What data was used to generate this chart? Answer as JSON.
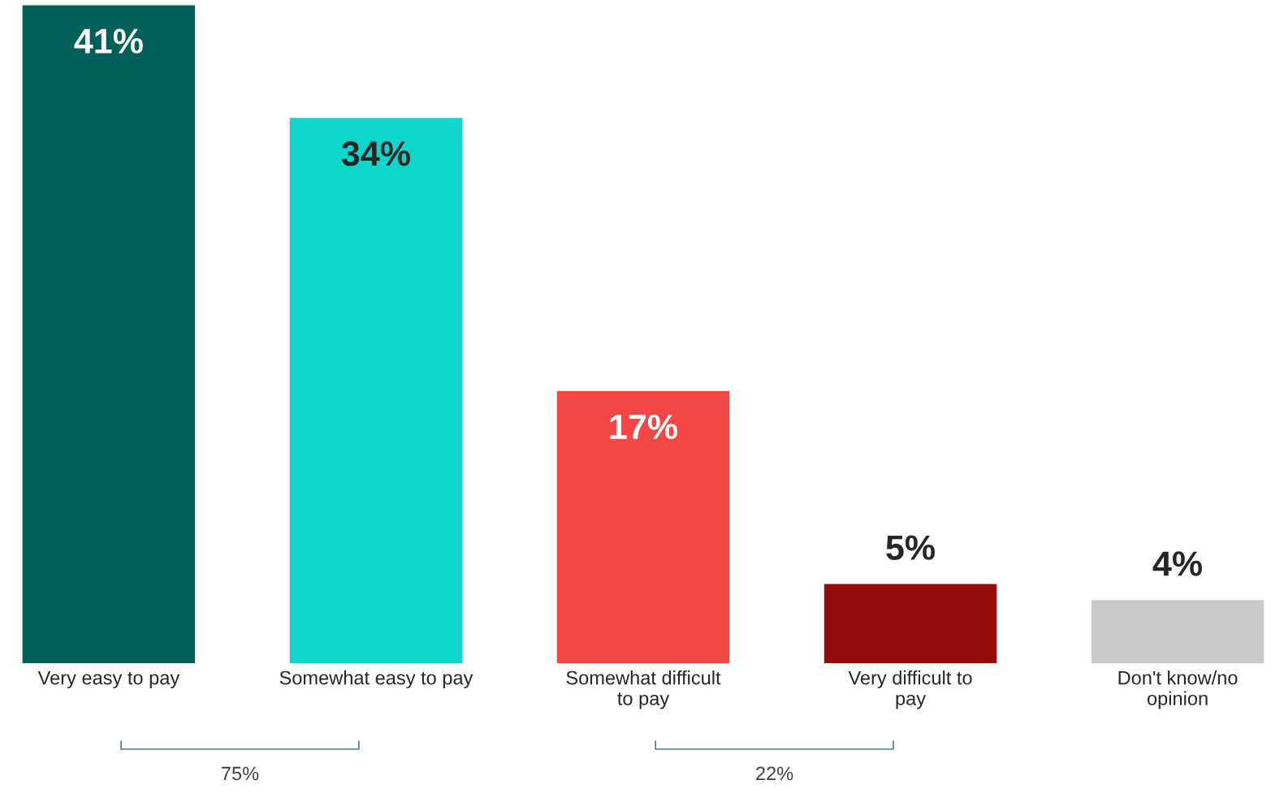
{
  "chart_data": {
    "type": "bar",
    "categories": [
      "Very easy to pay",
      "Somewhat easy to pay",
      "Somewhat difficult\nto pay",
      "Very difficult to\npay",
      "Don't know/no\nopinion"
    ],
    "values": [
      41,
      34,
      17,
      5,
      4
    ],
    "colors": [
      "#006059",
      "#0fd6cb",
      "#f44644",
      "#960a0a",
      "#c9c9c9"
    ],
    "data_labels": true,
    "value_labels": [
      "41%",
      "34%",
      "17%",
      "5%",
      "4%"
    ],
    "annotations": [
      "75%",
      "22%"
    ],
    "grid": false,
    "legend": false
  }
}
